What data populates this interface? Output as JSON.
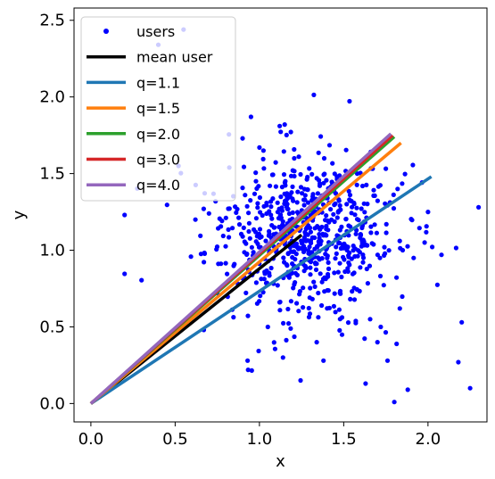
{
  "chart_data": {
    "type": "scatter",
    "title": "",
    "xlabel": "x",
    "ylabel": "y",
    "xlim": [
      -0.1,
      2.35
    ],
    "ylim": [
      -0.12,
      2.58
    ],
    "xticks": [
      "0.0",
      "0.5",
      "1.0",
      "1.5",
      "2.0"
    ],
    "xtick_values": [
      0.0,
      0.5,
      1.0,
      1.5,
      2.0
    ],
    "yticks": [
      "0.0",
      "0.5",
      "1.0",
      "1.5",
      "2.0",
      "2.5"
    ],
    "ytick_values": [
      0.0,
      0.5,
      1.0,
      1.5,
      2.0,
      2.5
    ],
    "grid": false,
    "legend_position": "top-left",
    "scatter": {
      "name": "users",
      "color": "#0000ff",
      "center": [
        1.25,
        1.1
      ],
      "spread": [
        0.28,
        0.33
      ],
      "count": 700,
      "points": [
        [
          2.3,
          1.28
        ],
        [
          2.25,
          0.1
        ],
        [
          2.2,
          0.53
        ],
        [
          2.18,
          0.27
        ],
        [
          2.08,
          0.97
        ],
        [
          1.98,
          1.05
        ],
        [
          1.88,
          0.09
        ],
        [
          1.82,
          1.4
        ],
        [
          1.8,
          0.01
        ],
        [
          1.76,
          0.28
        ],
        [
          1.72,
          0.5
        ],
        [
          1.7,
          0.4
        ],
        [
          1.63,
          0.13
        ],
        [
          1.58,
          1.5
        ],
        [
          1.52,
          1.0
        ],
        [
          1.46,
          1.48
        ],
        [
          1.38,
          0.28
        ],
        [
          1.34,
          0.4
        ],
        [
          1.14,
          0.3
        ],
        [
          1.05,
          0.5
        ],
        [
          0.93,
          0.28
        ],
        [
          0.75,
          0.72
        ],
        [
          0.67,
          0.48
        ],
        [
          0.62,
          1.2
        ],
        [
          0.55,
          2.44
        ],
        [
          0.52,
          1.55
        ],
        [
          0.4,
          2.34
        ],
        [
          0.2,
          1.23
        ],
        [
          1.12,
          1.81
        ],
        [
          1.15,
          1.82
        ],
        [
          1.0,
          1.67
        ],
        [
          0.9,
          1.73
        ],
        [
          0.95,
          1.87
        ],
        [
          2.0,
          1.25
        ],
        [
          1.85,
          1.0
        ]
      ]
    },
    "mean_user": {
      "name": "mean user",
      "color": "#000000",
      "x": [
        0,
        1.25
      ],
      "y": [
        0,
        1.1
      ]
    },
    "series": [
      {
        "name": "q=1.1",
        "color": "#1f77b4",
        "x": [
          0,
          2.02
        ],
        "y": [
          0,
          1.48
        ]
      },
      {
        "name": "q=1.5",
        "color": "#ff7f0e",
        "x": [
          0,
          1.84
        ],
        "y": [
          0,
          1.7
        ]
      },
      {
        "name": "q=2.0",
        "color": "#2ca02c",
        "x": [
          0,
          1.8
        ],
        "y": [
          0,
          1.74
        ]
      },
      {
        "name": "q=3.0",
        "color": "#d62728",
        "x": [
          0,
          1.79
        ],
        "y": [
          0,
          1.75
        ]
      },
      {
        "name": "q=4.0",
        "color": "#9467bd",
        "x": [
          0,
          1.78
        ],
        "y": [
          0,
          1.76
        ]
      }
    ]
  }
}
